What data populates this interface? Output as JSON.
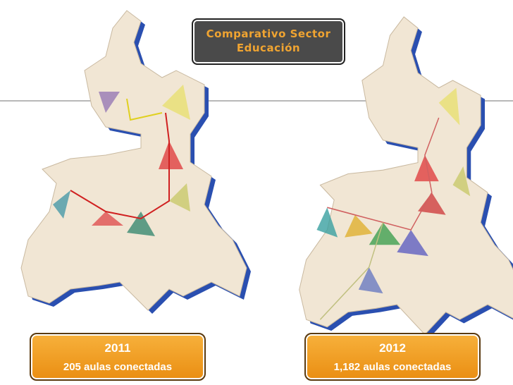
{
  "title": {
    "line1": "Comparativo  Sector",
    "line2": "Educación"
  },
  "left": {
    "year": "2011",
    "caption": "205 aulas conectadas"
  },
  "right": {
    "year": "2012",
    "caption": "1,182 aulas conectadas"
  }
}
